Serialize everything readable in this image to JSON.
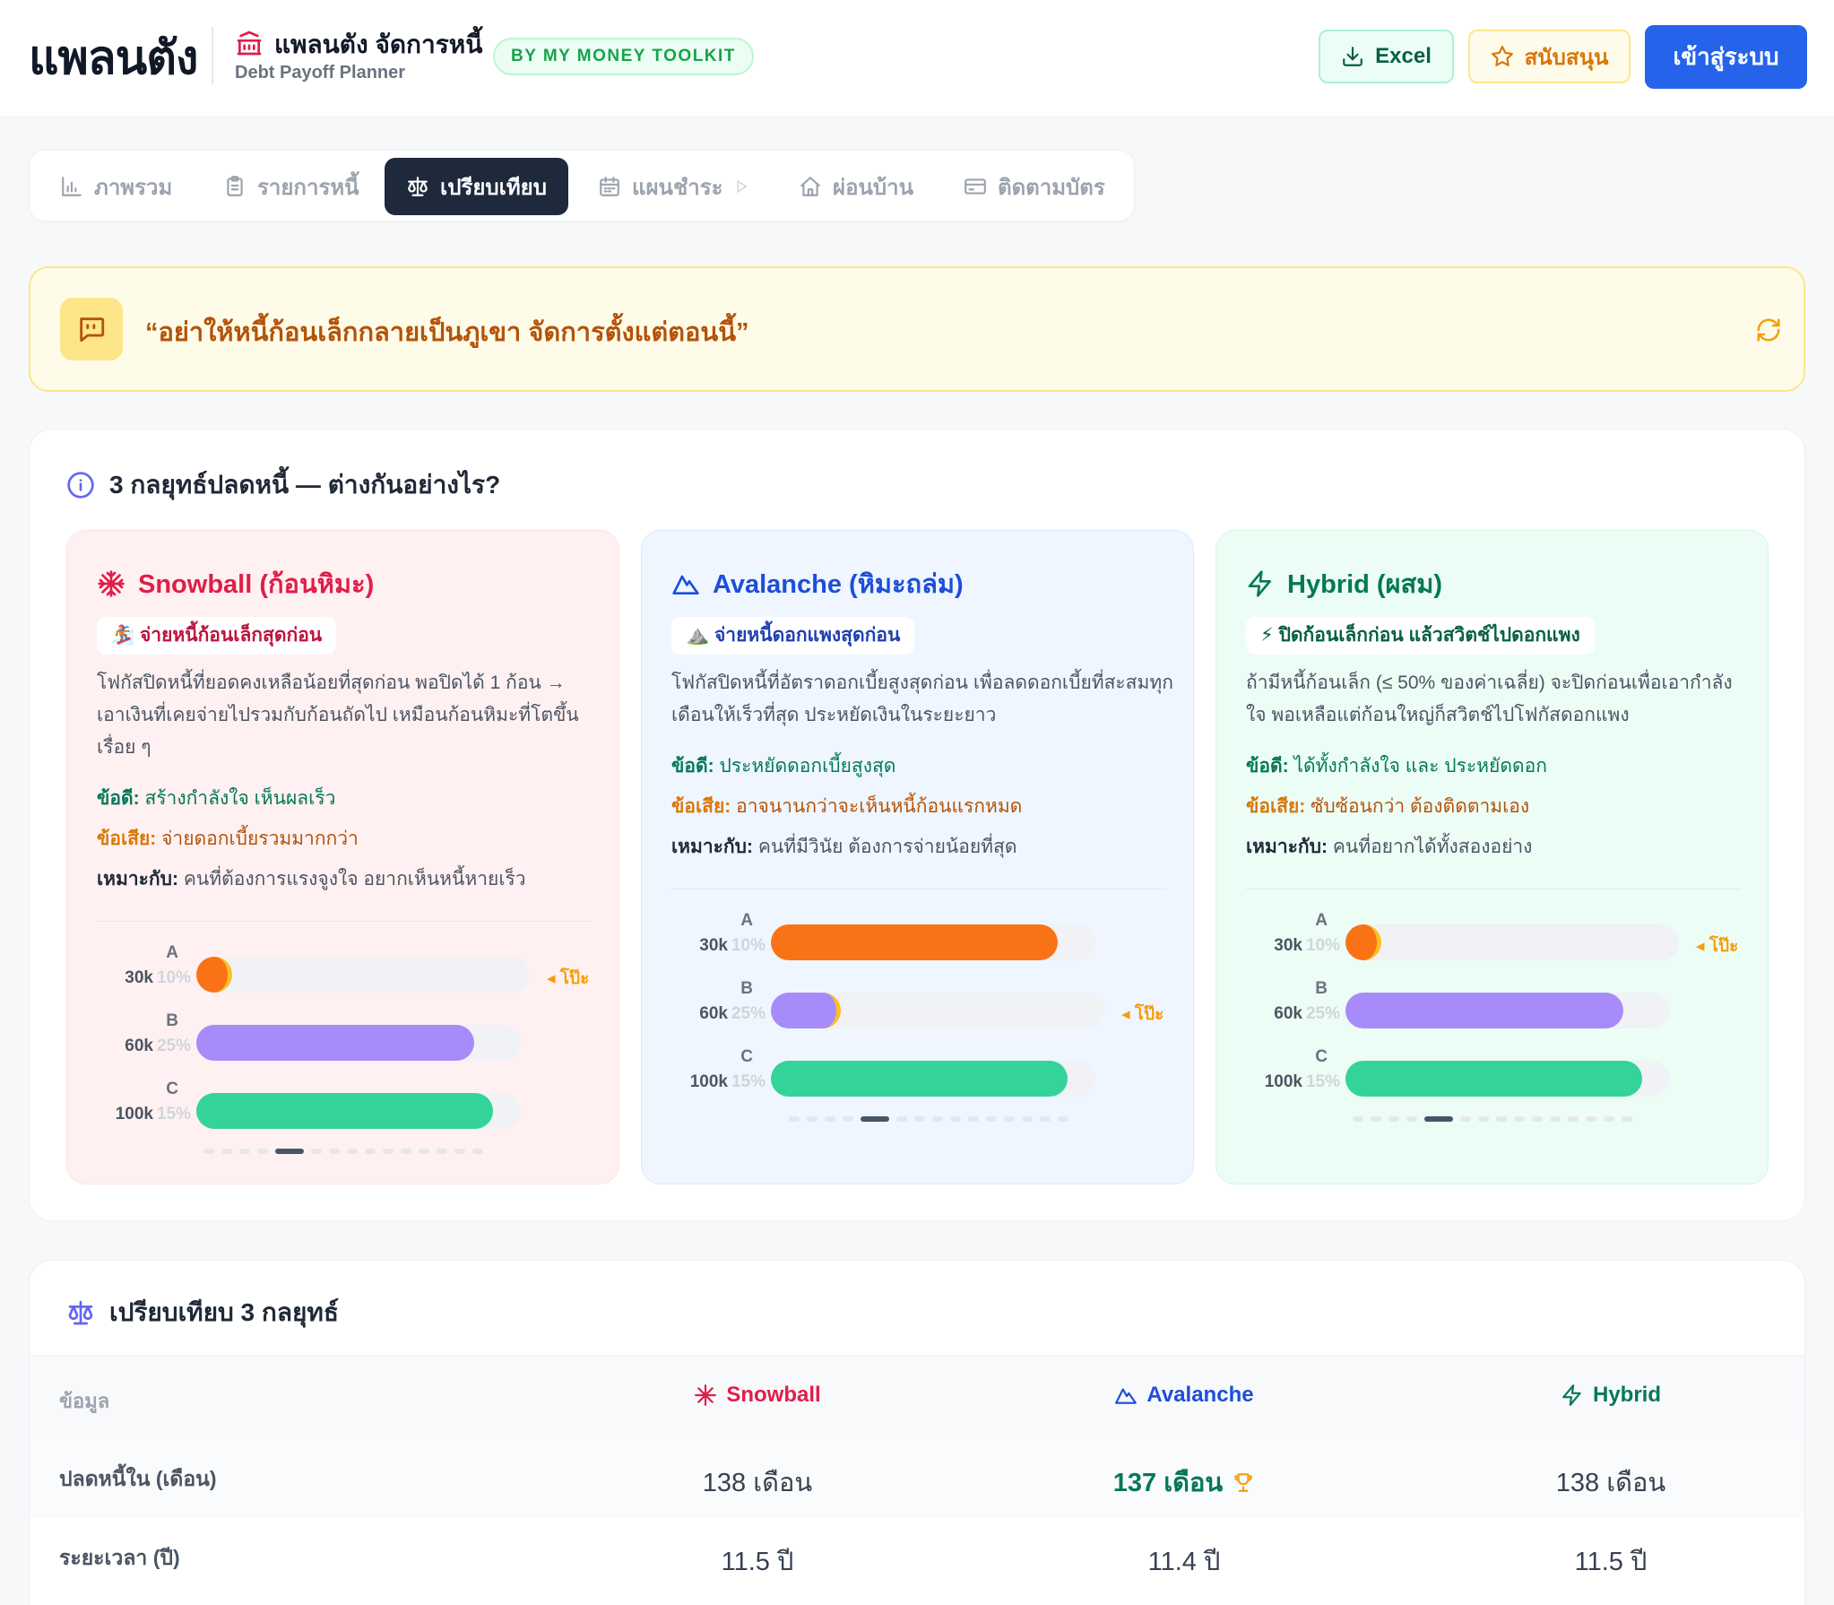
{
  "header": {
    "brand": "แพลนตัง",
    "app_name": "แพลนตัง จัดการหนี้",
    "app_sub": "Debt Payoff Planner",
    "badge": "BY MY MONEY TOOLKIT",
    "excel_label": "Excel",
    "support_label": "สนับสนุน",
    "login_label": "เข้าสู่ระบบ"
  },
  "tabs": [
    {
      "label": "ภาพรวม",
      "icon": "bar-chart-icon"
    },
    {
      "label": "รายการหนี้",
      "icon": "clipboard-icon"
    },
    {
      "label": "เปรียบเทียบ",
      "icon": "scale-icon",
      "active": true
    },
    {
      "label": "แผนชำระ",
      "icon": "calendar-icon"
    },
    {
      "label": "ผ่อนบ้าน",
      "icon": "home-icon"
    },
    {
      "label": "ติดตามบัตร",
      "icon": "credit-card-icon"
    }
  ],
  "quote": {
    "text": "“อย่าให้หนี้ก้อนเล็กกลายเป็นภูเขา จัดการตั้งแต่ตอนนี้”",
    "icon": "quote-bubble-icon",
    "refresh_icon": "refresh-icon"
  },
  "strategies_section": {
    "title": "3 กลยุทธ์ปลดหนี้ — ต่างกันอย่างไร?",
    "pro_key": "ข้อดี:",
    "con_key": "ข้อเสีย:",
    "fit_key": "เหมาะกับ:",
    "shoot_label": "◂ โป๊ะ",
    "strategies": [
      {
        "name": "Snowball (ก้อนหิมะ)",
        "icon": "snowflake-icon",
        "color": "#e11d48",
        "tag": "🏂 จ่ายหนี้ก้อนเล็กสุดก่อน",
        "tag_color": "#be123c",
        "desc": "โฟกัสปิดหนี้ที่ยอดคงเหลือน้อยที่สุดก่อน พอปิดได้ 1 ก้อน → เอาเงินที่เคยจ่ายไปรวมกับก้อนถัดไป เหมือนก้อนหิมะที่โตขึ้นเรื่อย ๆ",
        "pro": "สร้างกำลังใจ เห็นผลเร็ว",
        "con": "จ่ายดอกเบี้ยรวมมากกว่า",
        "fit": "คนที่ต้องการแรงจูงใจ อยากเห็นหนี้หายเร็ว",
        "bars": [
          {
            "letter": "A",
            "amount": "30k",
            "rate": "10%",
            "fill": 0.0,
            "target": true
          },
          {
            "letter": "B",
            "amount": "60k",
            "rate": "25%",
            "fill": 0.86,
            "target": false
          },
          {
            "letter": "C",
            "amount": "100k",
            "rate": "15%",
            "fill": 0.92,
            "target": false
          }
        ],
        "active_dot": 4
      },
      {
        "name": "Avalanche (หิมะถล่ม)",
        "icon": "mountain-icon",
        "color": "#1d4ed8",
        "tag": "⛰️ จ่ายหนี้ดอกแพงสุดก่อน",
        "tag_color": "#1e40af",
        "desc": "โฟกัสปิดหนี้ที่อัตราดอกเบี้ยสูงสุดก่อน เพื่อลดดอกเบี้ยที่สะสมทุกเดือนให้เร็วที่สุด ประหยัดเงินในระยะยาว",
        "pro": "ประหยัดดอกเบี้ยสูงสุด",
        "con": "อาจนานกว่าจะเห็นหนี้ก้อนแรกหมด",
        "fit": "คนที่มีวินัย ต้องการจ่ายน้อยที่สุด",
        "bars": [
          {
            "letter": "A",
            "amount": "30k",
            "rate": "10%",
            "fill": 0.88,
            "color": "#f97316",
            "target": false
          },
          {
            "letter": "B",
            "amount": "60k",
            "rate": "25%",
            "fill": 0.18,
            "color": "#a78bfa",
            "target": true
          },
          {
            "letter": "C",
            "amount": "100k",
            "rate": "15%",
            "fill": 0.91,
            "color": "#34d399",
            "target": false
          }
        ],
        "active_dot": 4
      },
      {
        "name": "Hybrid (ผสม)",
        "icon": "lightning-icon",
        "color": "#047857",
        "tag": "⚡ ปิดก้อนเล็กก่อน แล้วสวิตช์ไปดอกแพง",
        "tag_color": "#065f46",
        "desc": "ถ้ามีหนี้ก้อนเล็ก (≤ 50% ของค่าเฉลี่ย) จะปิดก่อนเพื่อเอากำลังใจ พอเหลือแต่ก้อนใหญ่ก็สวิตช์ไปโฟกัสดอกแพง",
        "pro": "ได้ทั้งกำลังใจ และ ประหยัดดอก",
        "con": "ซับซ้อนกว่า ต้องติดตามเอง",
        "fit": "คนที่อยากได้ทั้งสองอย่าง",
        "bars": [
          {
            "letter": "A",
            "amount": "30k",
            "rate": "10%",
            "fill": 0.0,
            "target": true
          },
          {
            "letter": "B",
            "amount": "60k",
            "rate": "25%",
            "fill": 0.85,
            "target": false
          },
          {
            "letter": "C",
            "amount": "100k",
            "rate": "15%",
            "fill": 0.91,
            "target": false
          }
        ],
        "active_dot": 4
      }
    ]
  },
  "compare": {
    "title": "เปรียบเทียบ 3 กลยุทธ์",
    "head_label": "ข้อมูล",
    "columns": [
      {
        "name": "Snowball",
        "icon": "snowflake-icon",
        "color": "#e11d48"
      },
      {
        "name": "Avalanche",
        "icon": "mountain-icon",
        "color": "#1d4ed8"
      },
      {
        "name": "Hybrid",
        "icon": "lightning-icon",
        "color": "#047857"
      }
    ],
    "rows": [
      {
        "label": "ปลดหนี้ใน (เดือน)",
        "values": [
          "138 เดือน",
          "137 เดือน",
          "138 เดือน"
        ],
        "best_index": 1
      },
      {
        "label": "ระยะเวลา (ปี)",
        "values": [
          "11.5 ปี",
          "11.4 ปี",
          "11.5 ปี"
        ],
        "best_index": -1
      }
    ]
  }
}
